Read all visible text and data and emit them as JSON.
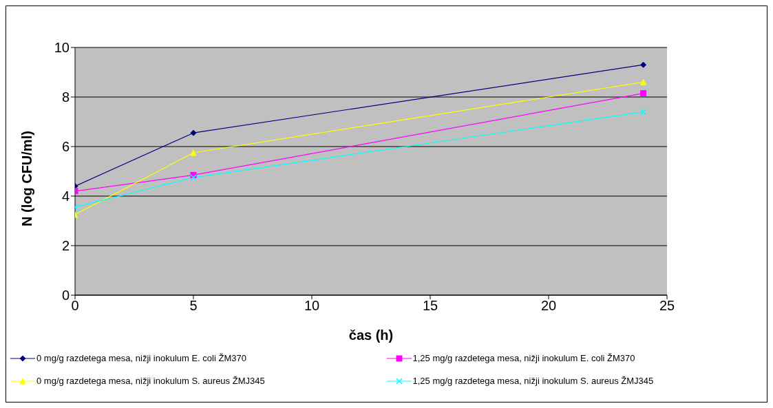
{
  "chart_data": {
    "type": "line",
    "xlabel": "čas (h)",
    "ylabel": "N (log CFU/ml)",
    "xlim": [
      0,
      25
    ],
    "xticks": [
      0,
      5,
      10,
      15,
      20,
      25
    ],
    "ylim": [
      0,
      10
    ],
    "yticks": [
      0,
      2,
      4,
      6,
      8,
      10
    ],
    "grid": "y",
    "legend": "bottom",
    "x": [
      0,
      5,
      24
    ],
    "series": [
      {
        "name": "0 mg/g razdetega mesa, nižji inokulum E. coli ŽM370",
        "color": "#000080",
        "marker": "diamond",
        "values": [
          4.4,
          6.55,
          9.3
        ]
      },
      {
        "name": "1,25 mg/g razdetega mesa, nižji inokulum E. coli ŽM370",
        "color": "#ff00ff",
        "marker": "square",
        "values": [
          4.2,
          4.85,
          8.15
        ]
      },
      {
        "name": "0 mg/g razdetega mesa, nižji inokulum S. aureus ŽMJ345",
        "color": "#ffff00",
        "marker": "triangle",
        "values": [
          3.25,
          5.75,
          8.6
        ]
      },
      {
        "name": "1,25 mg/g razdetega mesa, nižji inokulum S. aureus ŽMJ345",
        "color": "#00ffff",
        "marker": "cross",
        "values": [
          3.55,
          4.75,
          7.4
        ]
      }
    ]
  }
}
